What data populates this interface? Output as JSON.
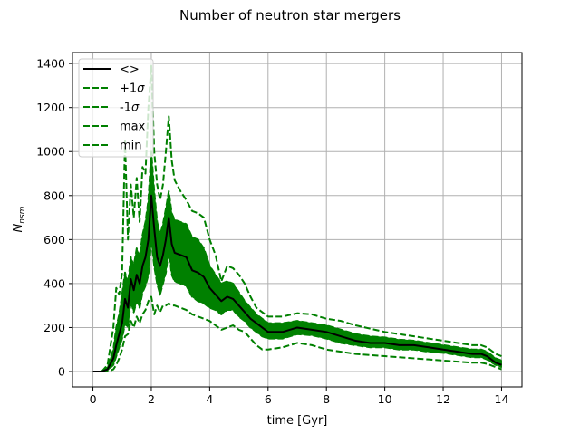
{
  "chart_data": {
    "type": "line",
    "title": "Number of neutron star mergers",
    "xlabel": "time [Gyr]",
    "ylabel_base": "N",
    "ylabel_sub": "nsm",
    "xlim": [
      -0.7,
      14.7
    ],
    "ylim": [
      -70,
      1450
    ],
    "xticks": [
      0,
      2,
      4,
      6,
      8,
      10,
      12,
      14
    ],
    "yticks": [
      0,
      200,
      400,
      600,
      800,
      1000,
      1200,
      1400
    ],
    "grid": true,
    "legend_position": "top-left",
    "colors": {
      "mean": "#000000",
      "band": "#008000",
      "green": "#008000",
      "grid": "#b0b0b0"
    },
    "legend": [
      {
        "key": "mean",
        "label": "<>",
        "style": "solid"
      },
      {
        "key": "p1",
        "label_main": "+1",
        "label_sigma": "σ",
        "style": "dashed"
      },
      {
        "key": "m1",
        "label_main": "-1",
        "label_sigma": "σ",
        "style": "dashed"
      },
      {
        "key": "max",
        "label": "max",
        "style": "dashed"
      },
      {
        "key": "min",
        "label": "min",
        "style": "dashed"
      }
    ],
    "x": [
      0,
      0.3,
      0.5,
      0.7,
      0.8,
      0.9,
      1.0,
      1.1,
      1.2,
      1.3,
      1.4,
      1.5,
      1.6,
      1.7,
      1.8,
      1.9,
      2.0,
      2.1,
      2.2,
      2.3,
      2.4,
      2.5,
      2.6,
      2.7,
      2.8,
      3.0,
      3.2,
      3.4,
      3.6,
      3.8,
      4.0,
      4.2,
      4.4,
      4.6,
      4.8,
      5.0,
      5.2,
      5.4,
      5.6,
      5.8,
      6.0,
      6.5,
      7.0,
      7.5,
      8.0,
      8.5,
      9.0,
      9.5,
      10.0,
      10.5,
      11.0,
      11.5,
      12.0,
      12.5,
      13.0,
      13.3,
      13.5,
      13.8,
      14.0
    ],
    "series": [
      {
        "key": "mean",
        "values": [
          0,
          0,
          10,
          60,
          120,
          170,
          220,
          330,
          290,
          420,
          370,
          440,
          400,
          480,
          520,
          600,
          800,
          650,
          520,
          480,
          530,
          600,
          700,
          580,
          540,
          530,
          520,
          460,
          450,
          430,
          380,
          350,
          320,
          340,
          330,
          300,
          270,
          240,
          220,
          200,
          180,
          180,
          200,
          190,
          180,
          160,
          140,
          130,
          130,
          120,
          120,
          110,
          100,
          90,
          80,
          80,
          70,
          40,
          30
        ]
      },
      {
        "key": "p1",
        "values": [
          0,
          0,
          20,
          100,
          200,
          260,
          350,
          450,
          400,
          520,
          480,
          560,
          520,
          620,
          680,
          780,
          1000,
          820,
          680,
          620,
          670,
          740,
          820,
          720,
          690,
          680,
          670,
          610,
          600,
          560,
          480,
          440,
          400,
          410,
          400,
          360,
          320,
          290,
          260,
          240,
          220,
          220,
          230,
          220,
          210,
          190,
          170,
          160,
          155,
          145,
          140,
          130,
          120,
          110,
          100,
          100,
          90,
          60,
          50
        ]
      },
      {
        "key": "m1",
        "values": [
          0,
          0,
          5,
          30,
          70,
          110,
          150,
          220,
          200,
          320,
          270,
          320,
          290,
          360,
          390,
          440,
          600,
          480,
          400,
          350,
          400,
          450,
          560,
          440,
          410,
          400,
          390,
          340,
          320,
          310,
          290,
          280,
          260,
          280,
          280,
          250,
          230,
          200,
          180,
          160,
          150,
          150,
          170,
          165,
          150,
          130,
          120,
          110,
          110,
          100,
          100,
          90,
          85,
          75,
          65,
          65,
          55,
          30,
          20
        ]
      },
      {
        "key": "max",
        "values": [
          0,
          0,
          30,
          200,
          380,
          350,
          450,
          1050,
          600,
          850,
          700,
          880,
          680,
          930,
          900,
          1200,
          1390,
          1000,
          850,
          780,
          850,
          1000,
          1160,
          960,
          870,
          820,
          780,
          730,
          720,
          700,
          600,
          530,
          410,
          480,
          470,
          440,
          400,
          340,
          290,
          270,
          250,
          250,
          265,
          260,
          240,
          230,
          210,
          195,
          180,
          170,
          160,
          150,
          140,
          130,
          120,
          120,
          110,
          80,
          70
        ]
      },
      {
        "key": "min",
        "values": [
          0,
          0,
          0,
          10,
          30,
          60,
          100,
          160,
          170,
          230,
          200,
          250,
          220,
          260,
          280,
          320,
          340,
          260,
          300,
          270,
          300,
          300,
          310,
          300,
          300,
          290,
          280,
          260,
          250,
          240,
          230,
          210,
          190,
          200,
          210,
          190,
          180,
          150,
          120,
          100,
          100,
          110,
          130,
          120,
          100,
          90,
          80,
          75,
          70,
          65,
          60,
          55,
          50,
          45,
          40,
          40,
          35,
          20,
          10
        ]
      }
    ]
  }
}
